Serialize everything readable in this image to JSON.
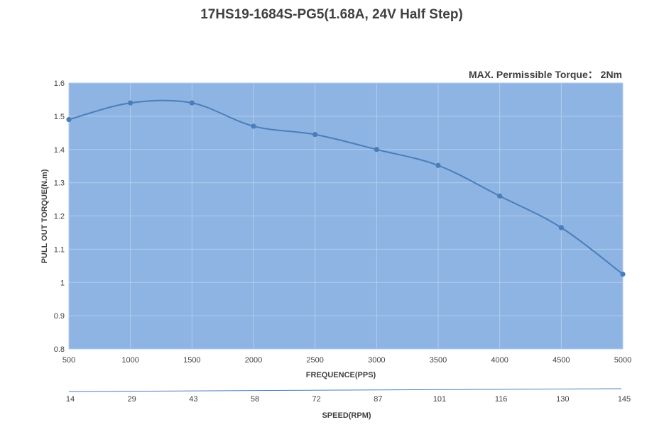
{
  "chart_data": {
    "type": "line",
    "title": "17HS19-1684S-PG5(1.68A, 24V Half Step)",
    "annotation": "MAX. Permissible Torque： 2Nm",
    "xlabel": "FREQUENCE(PPS)",
    "ylabel": "PULL OUT TORQUE(N.m)",
    "x2label": "SPEED(RPM)",
    "x": [
      500,
      1000,
      1500,
      2000,
      2500,
      3000,
      3500,
      4000,
      4500,
      5000
    ],
    "x2": [
      "14",
      "29",
      "43",
      "58",
      "72",
      "87",
      "101",
      "116",
      "130",
      "145"
    ],
    "series": [
      {
        "values": [
          1.49,
          1.54,
          1.54,
          1.47,
          1.445,
          1.4,
          1.352,
          1.26,
          1.165,
          1.025
        ]
      }
    ],
    "xlim": [
      500,
      5000
    ],
    "ylim": [
      0.8,
      1.6
    ],
    "yticks": [
      "0.8",
      "0.9",
      "1",
      "1.1",
      "1.2",
      "1.3",
      "1.4",
      "1.5",
      "1.6"
    ],
    "grid": true,
    "colors": {
      "plot_background": "#8DB4E2",
      "line": "#4A7EBB",
      "grid": "#B3CDEE",
      "text": "#404040"
    }
  }
}
